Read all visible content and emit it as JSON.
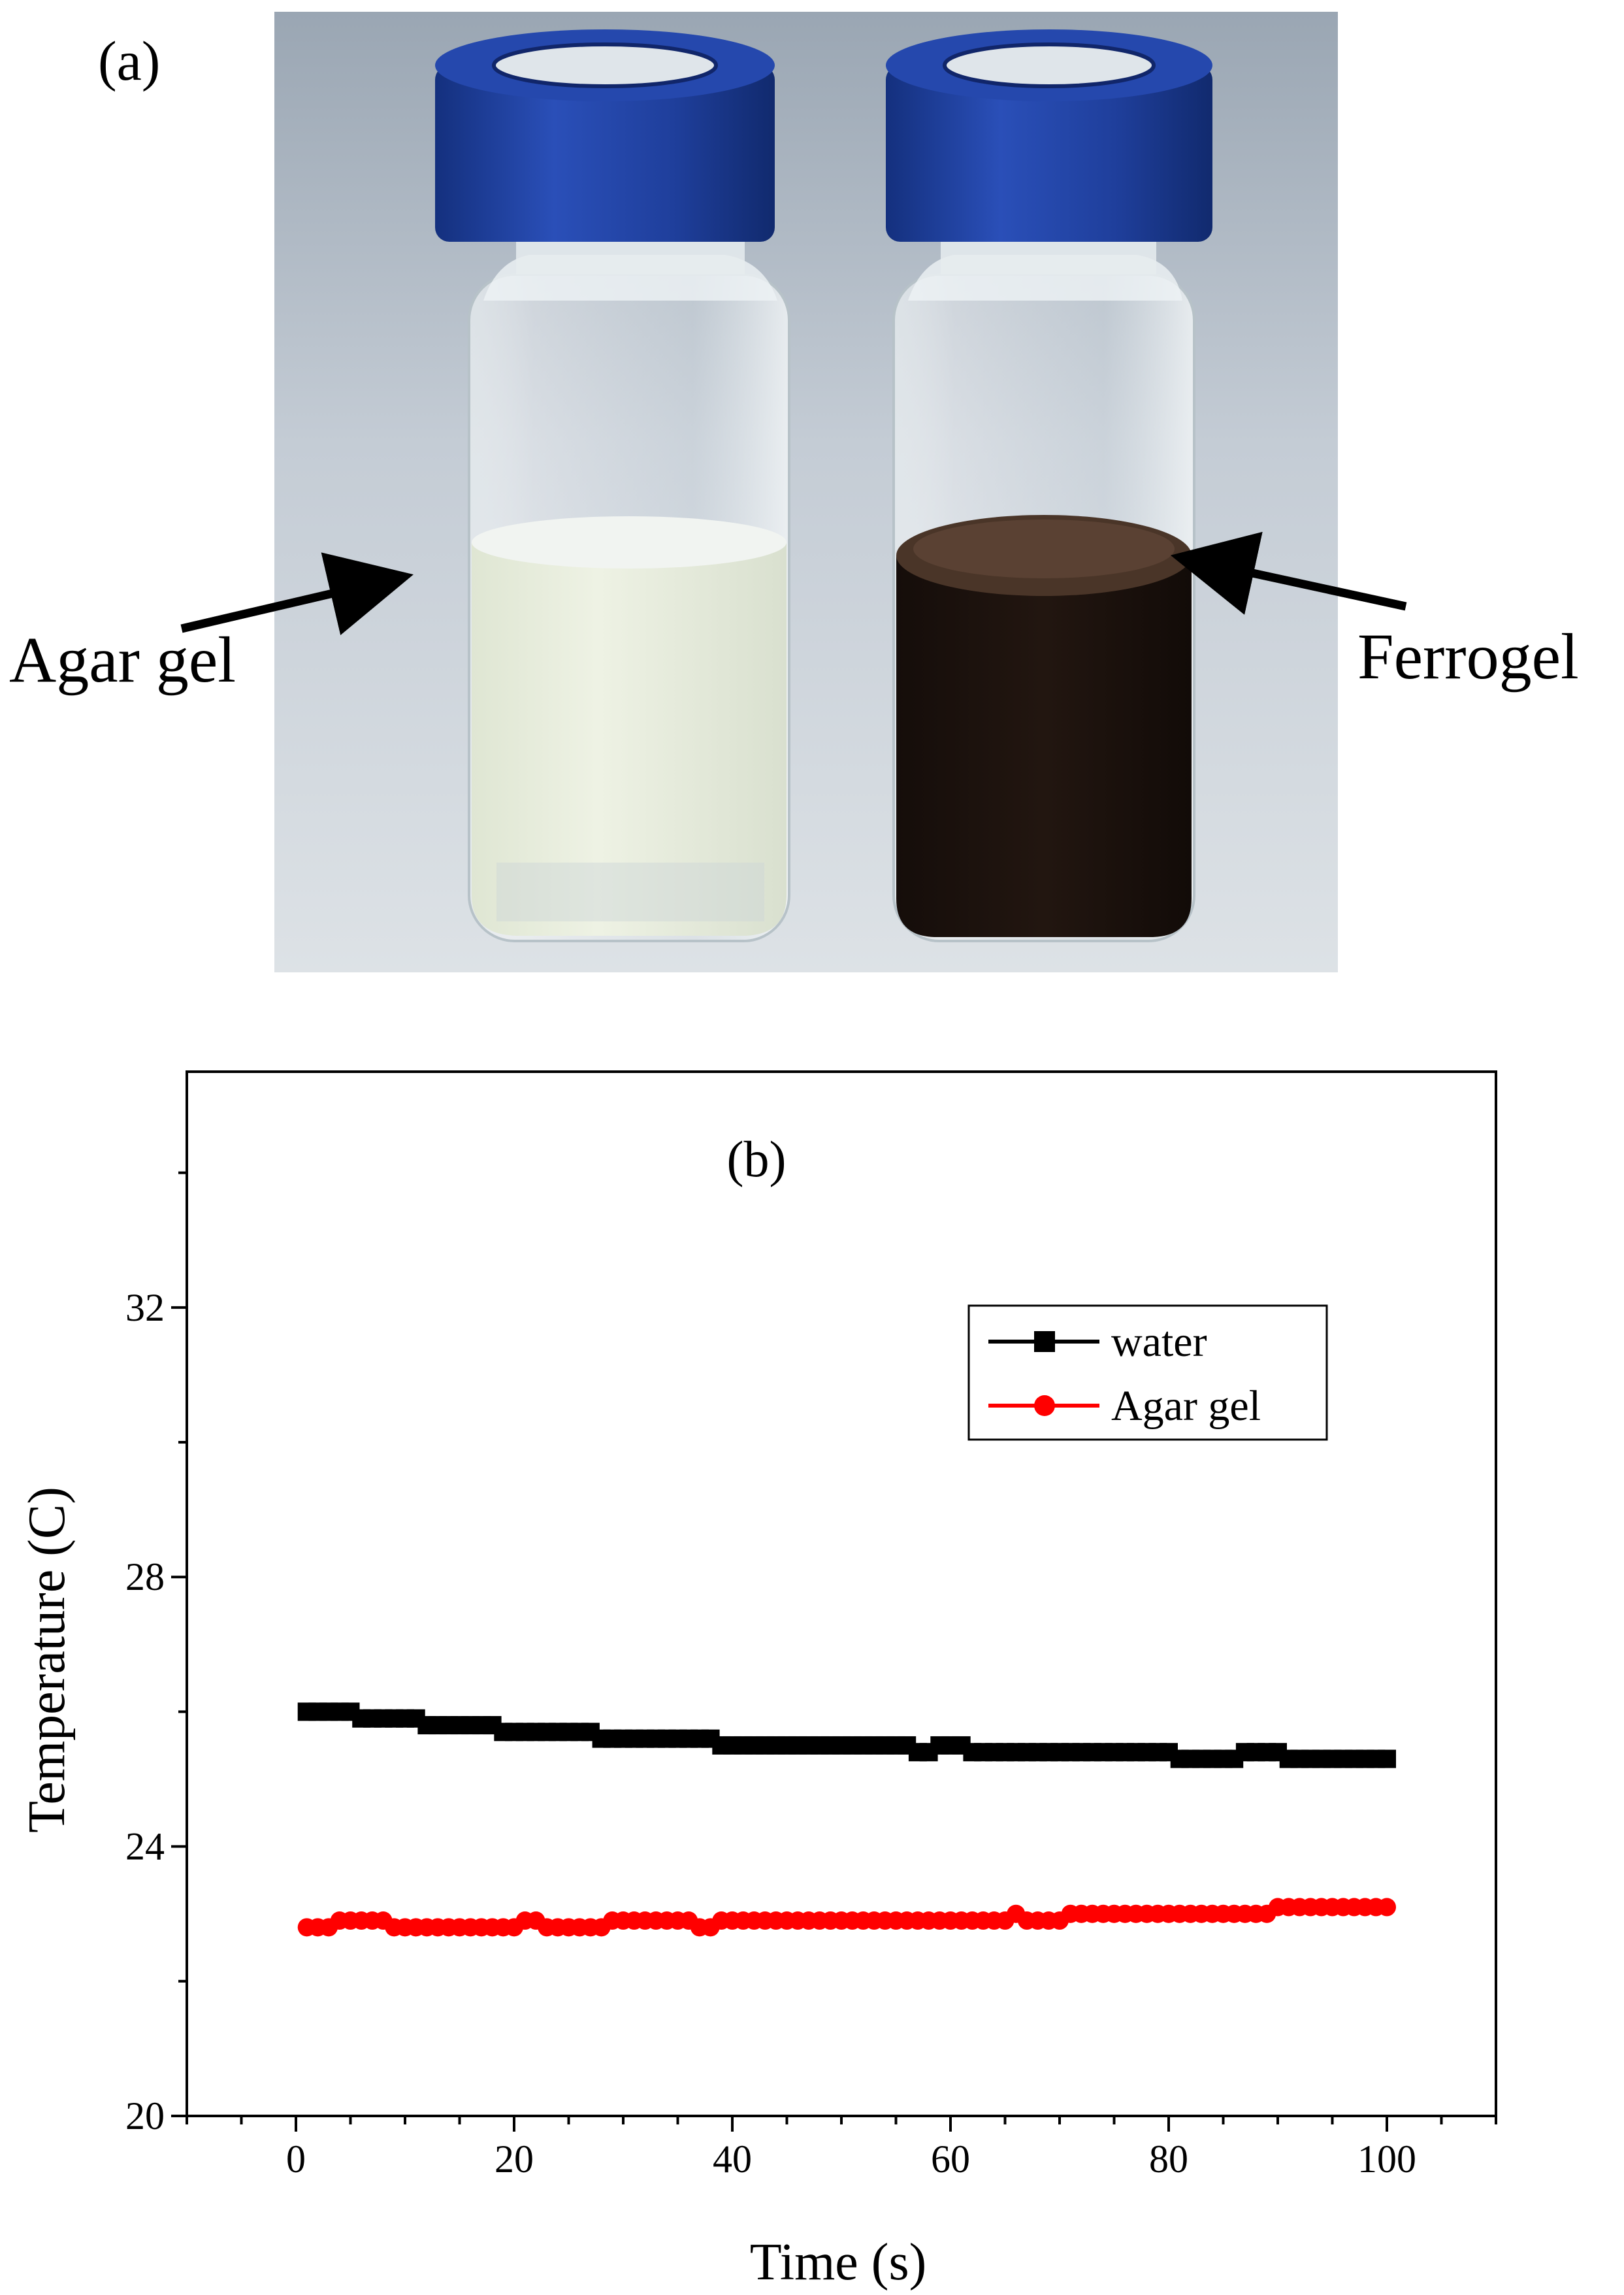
{
  "panel_a": {
    "label": "(a)",
    "left_callout": "Agar gel",
    "right_callout": "Ferrogel",
    "colors": {
      "cap": "#1f3f9c",
      "ferrogel": "#1e140f",
      "agar": "#e7ecdc",
      "backdrop": "#c2cad3"
    }
  },
  "chart_data": {
    "type": "scatter",
    "panel_label": "(b)",
    "title": "",
    "xlabel": "Time (s)",
    "ylabel": "Temperature (C)",
    "xlim": [
      -10,
      110
    ],
    "ylim": [
      20,
      35.5
    ],
    "x_ticks": [
      0,
      20,
      40,
      60,
      80,
      100
    ],
    "y_ticks": [
      20,
      24,
      28,
      32
    ],
    "x_minor_step": 5,
    "y_minor_step": 2,
    "grid": false,
    "legend_position": "top-right",
    "series": [
      {
        "name": "water",
        "color": "#000000",
        "marker": "square",
        "x_start": 1,
        "x_end": 100,
        "x_step": 1,
        "segments": [
          {
            "x0": 1,
            "x1": 5,
            "y": 26.0
          },
          {
            "x0": 6,
            "x1": 11,
            "y": 25.9
          },
          {
            "x0": 12,
            "x1": 18,
            "y": 25.8
          },
          {
            "x0": 19,
            "x1": 27,
            "y": 25.7
          },
          {
            "x0": 28,
            "x1": 38,
            "y": 25.6
          },
          {
            "x0": 39,
            "x1": 56,
            "y": 25.5
          },
          {
            "x0": 57,
            "x1": 58,
            "y": 25.4
          },
          {
            "x0": 59,
            "x1": 61,
            "y": 25.5
          },
          {
            "x0": 62,
            "x1": 80,
            "y": 25.4
          },
          {
            "x0": 81,
            "x1": 86,
            "y": 25.3
          },
          {
            "x0": 87,
            "x1": 90,
            "y": 25.4
          },
          {
            "x0": 91,
            "x1": 100,
            "y": 25.3
          }
        ]
      },
      {
        "name": "Agar gel",
        "color": "#ff0000",
        "marker": "circle",
        "x_start": 1,
        "x_end": 100,
        "x_step": 1,
        "segments": [
          {
            "x0": 1,
            "x1": 3,
            "y": 22.8
          },
          {
            "x0": 4,
            "x1": 8,
            "y": 22.9
          },
          {
            "x0": 9,
            "x1": 20,
            "y": 22.8
          },
          {
            "x0": 21,
            "x1": 22,
            "y": 22.9
          },
          {
            "x0": 23,
            "x1": 28,
            "y": 22.8
          },
          {
            "x0": 29,
            "x1": 36,
            "y": 22.9
          },
          {
            "x0": 37,
            "x1": 38,
            "y": 22.8
          },
          {
            "x0": 39,
            "x1": 65,
            "y": 22.9
          },
          {
            "x0": 66,
            "x1": 66,
            "y": 23.0
          },
          {
            "x0": 67,
            "x1": 70,
            "y": 22.9
          },
          {
            "x0": 71,
            "x1": 89,
            "y": 23.0
          },
          {
            "x0": 90,
            "x1": 100,
            "y": 23.1
          }
        ]
      }
    ]
  }
}
